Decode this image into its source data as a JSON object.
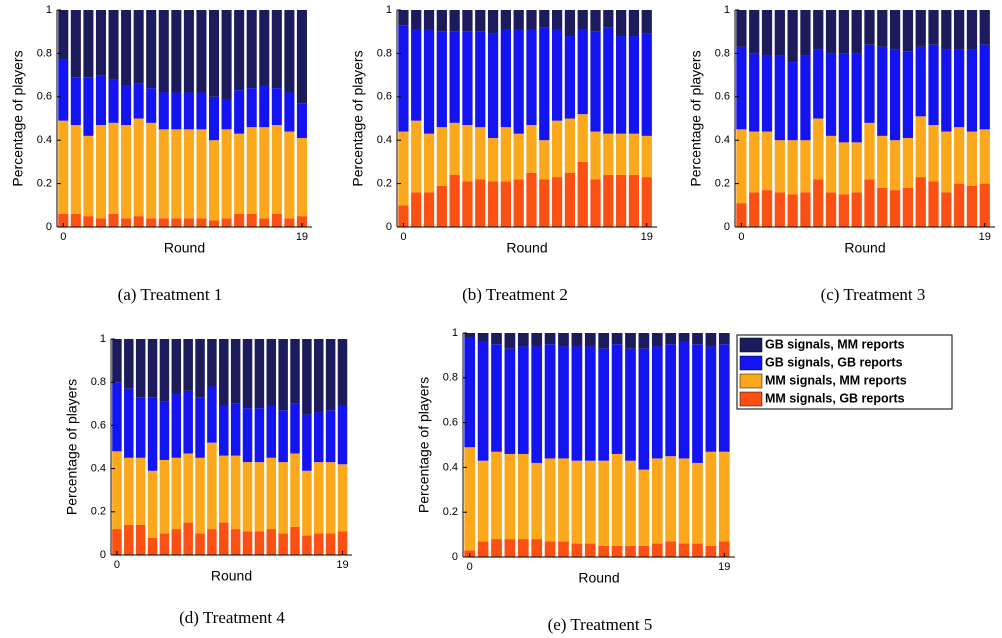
{
  "chart_data": [
    {
      "type": "bar",
      "caption": "(a) Treatment 1",
      "y_label": "Percentage of players",
      "x_label": "Round",
      "x": [
        0,
        1,
        2,
        3,
        4,
        5,
        6,
        7,
        8,
        9,
        10,
        11,
        12,
        13,
        14,
        15,
        16,
        17,
        18,
        19
      ],
      "xlim": [
        -0.5,
        19.8
      ],
      "xticks": [
        0,
        19
      ],
      "ylim": [
        0,
        1
      ],
      "yticks": [
        0,
        0.2,
        0.4,
        0.6,
        0.8,
        1
      ],
      "series": [
        {
          "values": [
            0.23,
            0.31,
            0.31,
            0.3,
            0.32,
            0.35,
            0.34,
            0.36,
            0.38,
            0.38,
            0.38,
            0.38,
            0.4,
            0.41,
            0.37,
            0.36,
            0.35,
            0.36,
            0.38,
            0.43
          ]
        },
        {
          "values": [
            0.28,
            0.22,
            0.27,
            0.23,
            0.2,
            0.18,
            0.16,
            0.16,
            0.17,
            0.17,
            0.17,
            0.17,
            0.2,
            0.14,
            0.2,
            0.18,
            0.19,
            0.17,
            0.18,
            0.16
          ]
        },
        {
          "values": [
            0.43,
            0.41,
            0.37,
            0.43,
            0.42,
            0.43,
            0.45,
            0.44,
            0.41,
            0.41,
            0.41,
            0.41,
            0.37,
            0.41,
            0.37,
            0.4,
            0.42,
            0.41,
            0.4,
            0.36
          ]
        },
        {
          "values": [
            0.06,
            0.06,
            0.05,
            0.04,
            0.06,
            0.04,
            0.05,
            0.04,
            0.04,
            0.04,
            0.04,
            0.04,
            0.03,
            0.04,
            0.06,
            0.06,
            0.04,
            0.06,
            0.04,
            0.05
          ]
        }
      ]
    },
    {
      "type": "bar",
      "caption": "(b) Treatment 2",
      "y_label": "Percentage of players",
      "x_label": "Round",
      "x": [
        0,
        1,
        2,
        3,
        4,
        5,
        6,
        7,
        8,
        9,
        10,
        11,
        12,
        13,
        14,
        15,
        16,
        17,
        18,
        19
      ],
      "xlim": [
        -0.5,
        19.8
      ],
      "xticks": [
        0,
        19
      ],
      "ylim": [
        0,
        1
      ],
      "yticks": [
        0,
        0.2,
        0.4,
        0.6,
        0.8,
        1
      ],
      "series": [
        {
          "values": [
            0.07,
            0.09,
            0.09,
            0.1,
            0.1,
            0.1,
            0.1,
            0.11,
            0.09,
            0.09,
            0.09,
            0.08,
            0.09,
            0.12,
            0.09,
            0.1,
            0.08,
            0.12,
            0.12,
            0.11
          ]
        },
        {
          "values": [
            0.49,
            0.42,
            0.48,
            0.44,
            0.42,
            0.43,
            0.44,
            0.48,
            0.45,
            0.48,
            0.44,
            0.52,
            0.42,
            0.38,
            0.39,
            0.46,
            0.49,
            0.45,
            0.45,
            0.47
          ]
        },
        {
          "values": [
            0.34,
            0.33,
            0.27,
            0.27,
            0.24,
            0.26,
            0.24,
            0.2,
            0.25,
            0.21,
            0.22,
            0.18,
            0.26,
            0.25,
            0.22,
            0.22,
            0.19,
            0.19,
            0.19,
            0.19
          ]
        },
        {
          "values": [
            0.1,
            0.16,
            0.16,
            0.19,
            0.24,
            0.21,
            0.22,
            0.21,
            0.21,
            0.22,
            0.25,
            0.22,
            0.23,
            0.25,
            0.3,
            0.22,
            0.24,
            0.24,
            0.24,
            0.23
          ]
        }
      ]
    },
    {
      "type": "bar",
      "caption": "(c) Treatment 3",
      "y_label": "Percentage of players",
      "x_label": "Round",
      "x": [
        0,
        1,
        2,
        3,
        4,
        5,
        6,
        7,
        8,
        9,
        10,
        11,
        12,
        13,
        14,
        15,
        16,
        17,
        18,
        19
      ],
      "xlim": [
        -0.5,
        19.8
      ],
      "xticks": [
        0,
        19
      ],
      "ylim": [
        0,
        1
      ],
      "yticks": [
        0,
        0.2,
        0.4,
        0.6,
        0.8,
        1
      ],
      "series": [
        {
          "values": [
            0.17,
            0.2,
            0.21,
            0.21,
            0.24,
            0.21,
            0.18,
            0.2,
            0.2,
            0.2,
            0.16,
            0.17,
            0.18,
            0.19,
            0.17,
            0.16,
            0.18,
            0.18,
            0.18,
            0.16
          ]
        },
        {
          "values": [
            0.38,
            0.36,
            0.35,
            0.39,
            0.36,
            0.39,
            0.32,
            0.38,
            0.41,
            0.41,
            0.36,
            0.41,
            0.42,
            0.4,
            0.32,
            0.37,
            0.38,
            0.36,
            0.38,
            0.39
          ]
        },
        {
          "values": [
            0.34,
            0.28,
            0.27,
            0.24,
            0.25,
            0.24,
            0.28,
            0.26,
            0.24,
            0.23,
            0.26,
            0.24,
            0.23,
            0.23,
            0.28,
            0.26,
            0.28,
            0.26,
            0.25,
            0.25
          ]
        },
        {
          "values": [
            0.11,
            0.16,
            0.17,
            0.16,
            0.15,
            0.16,
            0.22,
            0.16,
            0.15,
            0.16,
            0.22,
            0.18,
            0.17,
            0.18,
            0.23,
            0.21,
            0.16,
            0.2,
            0.19,
            0.2
          ]
        }
      ]
    },
    {
      "type": "bar",
      "caption": "(d) Treatment 4",
      "y_label": "Percentage of players",
      "x_label": "Round",
      "x": [
        0,
        1,
        2,
        3,
        4,
        5,
        6,
        7,
        8,
        9,
        10,
        11,
        12,
        13,
        14,
        15,
        16,
        17,
        18,
        19
      ],
      "xlim": [
        -0.5,
        19.8
      ],
      "xticks": [
        0,
        19
      ],
      "ylim": [
        0,
        1
      ],
      "yticks": [
        0,
        0.2,
        0.4,
        0.6,
        0.8,
        1
      ],
      "series": [
        {
          "values": [
            0.2,
            0.23,
            0.27,
            0.27,
            0.29,
            0.25,
            0.24,
            0.27,
            0.22,
            0.31,
            0.3,
            0.32,
            0.32,
            0.31,
            0.33,
            0.3,
            0.35,
            0.34,
            0.33,
            0.31
          ]
        },
        {
          "values": [
            0.32,
            0.32,
            0.28,
            0.34,
            0.27,
            0.3,
            0.29,
            0.28,
            0.26,
            0.23,
            0.24,
            0.25,
            0.25,
            0.24,
            0.24,
            0.23,
            0.26,
            0.23,
            0.24,
            0.27
          ]
        },
        {
          "values": [
            0.36,
            0.31,
            0.31,
            0.31,
            0.34,
            0.33,
            0.32,
            0.35,
            0.4,
            0.31,
            0.34,
            0.32,
            0.32,
            0.33,
            0.33,
            0.34,
            0.3,
            0.33,
            0.33,
            0.31
          ]
        },
        {
          "values": [
            0.12,
            0.14,
            0.14,
            0.08,
            0.1,
            0.12,
            0.15,
            0.1,
            0.12,
            0.15,
            0.12,
            0.11,
            0.11,
            0.12,
            0.1,
            0.13,
            0.09,
            0.1,
            0.1,
            0.11
          ]
        }
      ]
    },
    {
      "type": "bar",
      "caption": "(e) Treatment 5",
      "y_label": "Percentage of players",
      "x_label": "Round",
      "x": [
        0,
        1,
        2,
        3,
        4,
        5,
        6,
        7,
        8,
        9,
        10,
        11,
        12,
        13,
        14,
        15,
        16,
        17,
        18,
        19
      ],
      "xlim": [
        -0.5,
        19.8
      ],
      "xticks": [
        0,
        19
      ],
      "ylim": [
        0,
        1
      ],
      "yticks": [
        0,
        0.2,
        0.4,
        0.6,
        0.8,
        1
      ],
      "series": [
        {
          "values": [
            0.02,
            0.04,
            0.05,
            0.07,
            0.06,
            0.06,
            0.05,
            0.06,
            0.06,
            0.06,
            0.07,
            0.05,
            0.07,
            0.07,
            0.06,
            0.05,
            0.04,
            0.05,
            0.06,
            0.05
          ]
        },
        {
          "values": [
            0.49,
            0.53,
            0.48,
            0.47,
            0.48,
            0.52,
            0.51,
            0.5,
            0.51,
            0.51,
            0.5,
            0.49,
            0.5,
            0.54,
            0.5,
            0.5,
            0.52,
            0.53,
            0.47,
            0.48
          ]
        },
        {
          "values": [
            0.46,
            0.36,
            0.39,
            0.38,
            0.38,
            0.34,
            0.37,
            0.37,
            0.37,
            0.37,
            0.38,
            0.41,
            0.38,
            0.34,
            0.38,
            0.38,
            0.38,
            0.36,
            0.42,
            0.4
          ]
        },
        {
          "values": [
            0.03,
            0.07,
            0.08,
            0.08,
            0.08,
            0.08,
            0.07,
            0.07,
            0.06,
            0.06,
            0.05,
            0.05,
            0.05,
            0.05,
            0.06,
            0.07,
            0.06,
            0.06,
            0.05,
            0.07
          ]
        }
      ]
    }
  ],
  "legend": {
    "entries": [
      {
        "name": "GB signals, MM reports",
        "color": "#1c1c5c"
      },
      {
        "name": "GB signals, GB reports",
        "color": "#1414f0"
      },
      {
        "name": "MM signals, MM reports",
        "color": "#fba81c"
      },
      {
        "name": "MM signals, GB reports",
        "color": "#fb5014"
      }
    ]
  }
}
